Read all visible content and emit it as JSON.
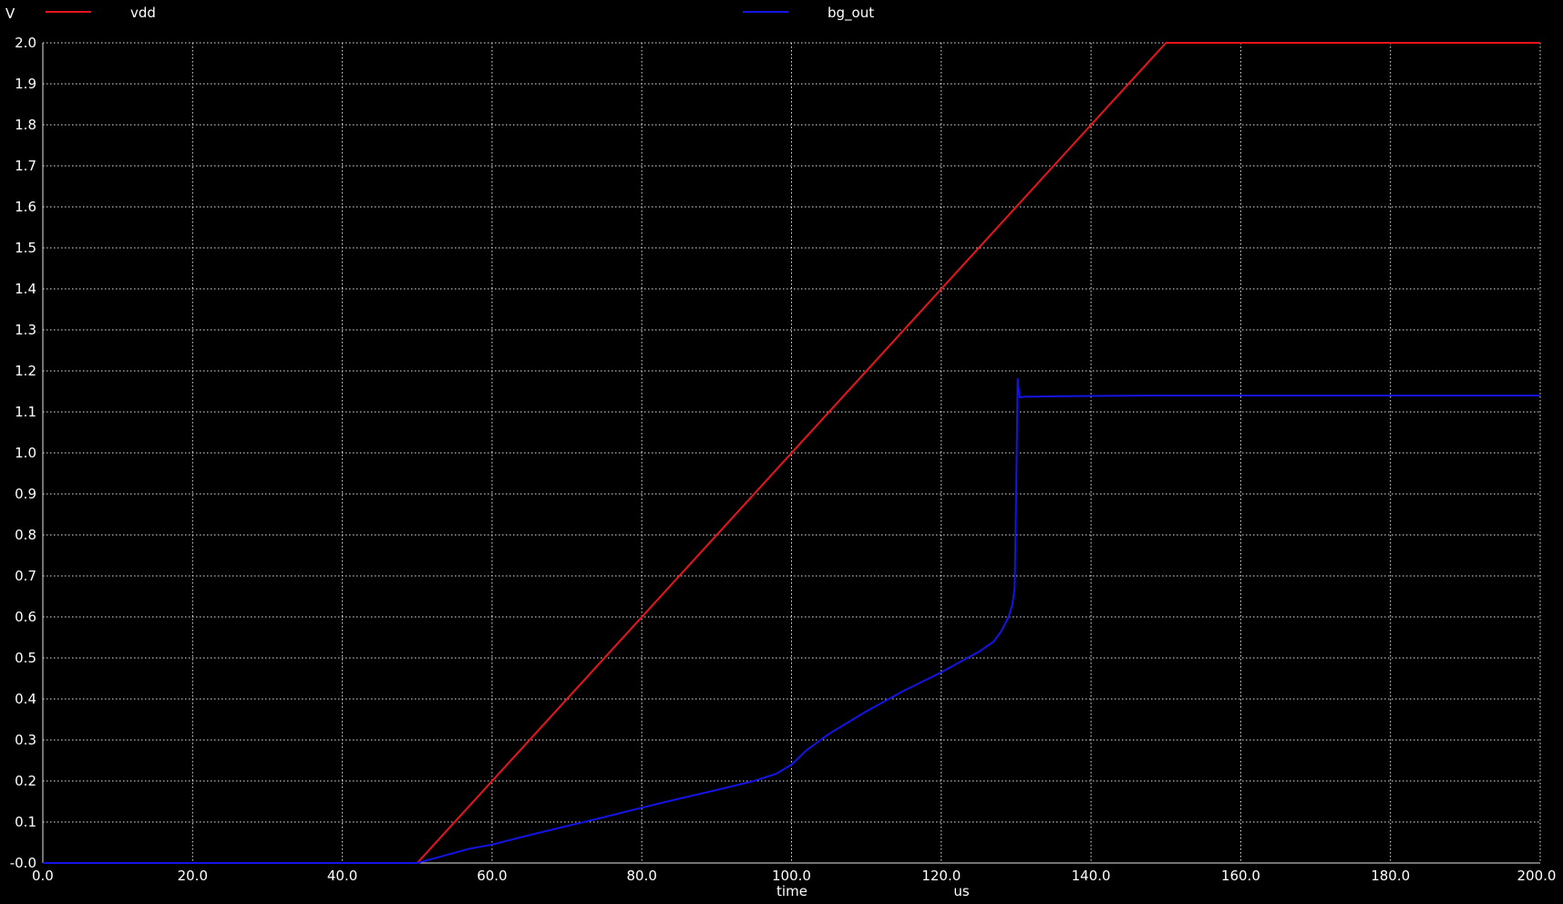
{
  "chart_data": {
    "type": "line",
    "ylabel": "V",
    "xlabel": "time",
    "xunit": "us",
    "xlim": [
      0,
      200
    ],
    "ylim": [
      0,
      2.0
    ],
    "grid": true,
    "legend_position": "top",
    "x_ticks": [
      0,
      20,
      40,
      60,
      80,
      100,
      120,
      140,
      160,
      180,
      200
    ],
    "x_tick_labels": [
      "0.0",
      "20.0",
      "40.0",
      "60.0",
      "80.0",
      "100.0",
      "120.0",
      "140.0",
      "160.0",
      "180.0",
      "200.0"
    ],
    "y_ticks": [
      0,
      0.1,
      0.2,
      0.3,
      0.4,
      0.5,
      0.6,
      0.7,
      0.8,
      0.9,
      1.0,
      1.1,
      1.2,
      1.3,
      1.4,
      1.5,
      1.6,
      1.7,
      1.8,
      1.9,
      2.0
    ],
    "y_tick_labels": [
      "-0.0",
      "0.1",
      "0.2",
      "0.3",
      "0.4",
      "0.5",
      "0.6",
      "0.7",
      "0.8",
      "0.9",
      "1.0",
      "1.1",
      "1.2",
      "1.3",
      "1.4",
      "1.5",
      "1.6",
      "1.7",
      "1.8",
      "1.9",
      "2.0"
    ],
    "series": [
      {
        "name": "vdd",
        "color": "#e8141c",
        "x": [
          0,
          50,
          150,
          200
        ],
        "y": [
          0,
          0,
          2.0,
          2.0
        ]
      },
      {
        "name": "bg_out",
        "color": "#1414e6",
        "x": [
          0,
          50,
          53,
          57,
          60,
          65,
          70,
          75,
          80,
          85,
          90,
          95,
          98,
          100,
          102,
          105,
          110,
          115,
          120,
          123,
          125,
          127,
          128,
          129,
          129.5,
          129.8,
          130.0,
          130.2,
          130.3,
          130.5,
          131,
          135,
          140,
          150,
          200
        ],
        "y": [
          0,
          0,
          0.015,
          0.035,
          0.045,
          0.068,
          0.09,
          0.112,
          0.135,
          0.157,
          0.178,
          0.2,
          0.218,
          0.24,
          0.275,
          0.315,
          0.37,
          0.42,
          0.465,
          0.495,
          0.515,
          0.54,
          0.565,
          0.6,
          0.63,
          0.67,
          0.9,
          1.18,
          1.16,
          1.135,
          1.137,
          1.138,
          1.139,
          1.14,
          1.14
        ]
      }
    ]
  }
}
